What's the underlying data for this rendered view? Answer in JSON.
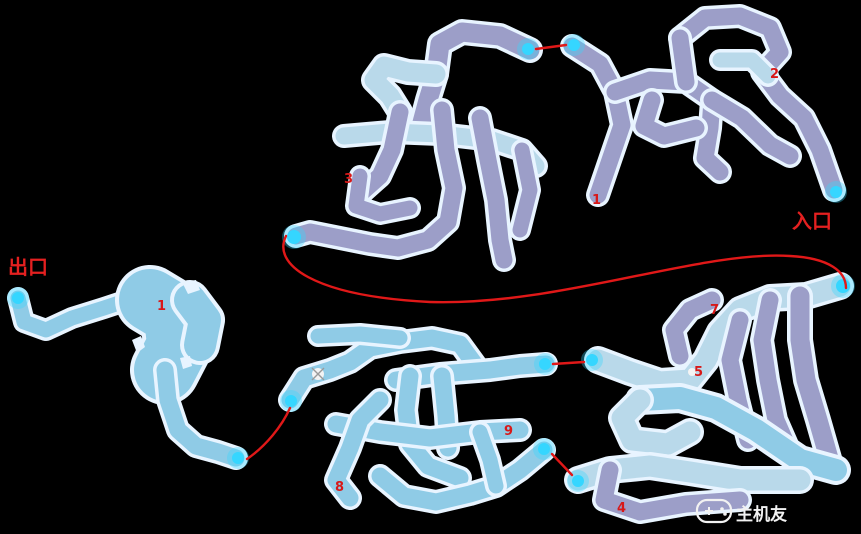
{
  "labels": {
    "entrance": "入口",
    "exit": "出口"
  },
  "markers": {
    "m1_upper": "1",
    "m2": "2",
    "m3": "3",
    "m4": "4",
    "m5": "5",
    "m7": "7",
    "m8": "8",
    "m9": "9",
    "m1_lower": "1"
  },
  "watermark": {
    "text": "主机友"
  },
  "colors": {
    "background": "#000000",
    "route": "#e01818",
    "portal": "#35d6ff",
    "cave_edge": "#e8f4ff"
  }
}
